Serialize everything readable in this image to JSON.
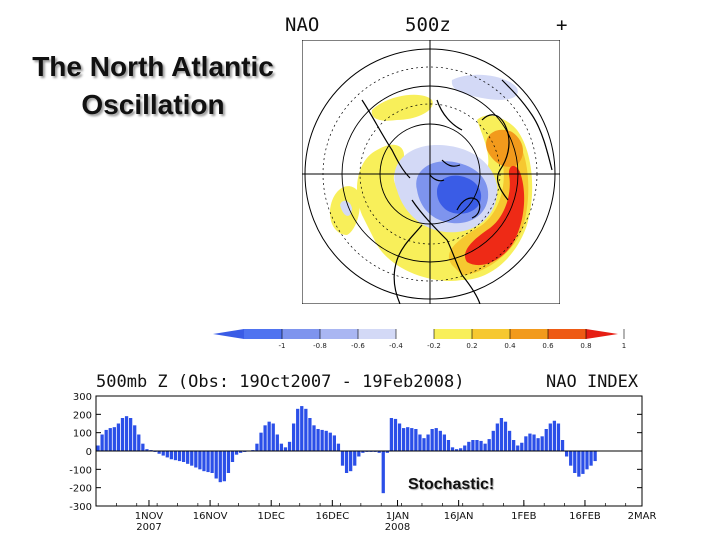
{
  "slide": {
    "title_line1": "The North Atlantic",
    "title_line2": "Oscillation",
    "annotation": "Stochastic!"
  },
  "map": {
    "label_left": "NAO",
    "label_center": "500z",
    "label_right": "+"
  },
  "colorbar": {
    "ticks": [
      "-1",
      "-0.8",
      "-0.6",
      "-0.4",
      "-0.2",
      "0.2",
      "0.4",
      "0.6",
      "0.8",
      "1"
    ],
    "colors": [
      "#3a5ce6",
      "#4f73f0",
      "#7e94ee",
      "#a9b6f2",
      "#d3d9f6",
      "#ffffff",
      "#f8ef5a",
      "#f6c830",
      "#f29a1c",
      "#ee5a14",
      "#e61e14"
    ]
  },
  "chart_data": {
    "type": "bar",
    "title": "500mb Z (Obs: 19Oct2007 - 19Feb2008)",
    "title_right": "NAO INDEX",
    "ylim": [
      -300,
      300
    ],
    "yticks": [
      -300,
      -200,
      -100,
      0,
      100,
      200,
      300
    ],
    "xticks": [
      {
        "day": 13,
        "label": "1NOV",
        "sub": "2007"
      },
      {
        "day": 28,
        "label": "16NOV",
        "sub": ""
      },
      {
        "day": 43,
        "label": "1DEC",
        "sub": ""
      },
      {
        "day": 58,
        "label": "16DEC",
        "sub": ""
      },
      {
        "day": 74,
        "label": "1JAN",
        "sub": "2008"
      },
      {
        "day": 89,
        "label": "16JAN",
        "sub": ""
      },
      {
        "day": 105,
        "label": "1FEB",
        "sub": ""
      },
      {
        "day": 120,
        "label": "16FEB",
        "sub": ""
      },
      {
        "day": 134,
        "label": "2MAR",
        "sub": ""
      }
    ],
    "series": [
      {
        "name": "NAO index",
        "start_date": "19Oct2007",
        "values": [
          30,
          90,
          115,
          125,
          130,
          150,
          180,
          190,
          180,
          140,
          90,
          40,
          10,
          5,
          -5,
          -15,
          -25,
          -35,
          -45,
          -50,
          -55,
          -60,
          -70,
          -80,
          -90,
          -100,
          -110,
          -115,
          -120,
          -150,
          -170,
          -165,
          -120,
          -60,
          -20,
          -10,
          -5,
          0,
          5,
          40,
          100,
          140,
          160,
          150,
          90,
          40,
          20,
          50,
          150,
          230,
          245,
          230,
          180,
          140,
          120,
          115,
          110,
          100,
          85,
          40,
          -80,
          -120,
          -110,
          -80,
          -30,
          -10,
          -5,
          -5,
          -5,
          -10,
          -230,
          -10,
          180,
          175,
          150,
          125,
          130,
          125,
          120,
          90,
          70,
          90,
          120,
          125,
          110,
          90,
          60,
          20,
          10,
          15,
          30,
          50,
          60,
          60,
          55,
          40,
          65,
          110,
          150,
          180,
          160,
          110,
          60,
          30,
          45,
          80,
          95,
          90,
          70,
          80,
          120,
          150,
          165,
          150,
          60,
          -30,
          -80,
          -120,
          -140,
          -125,
          -100,
          -80,
          -55
        ]
      }
    ]
  }
}
